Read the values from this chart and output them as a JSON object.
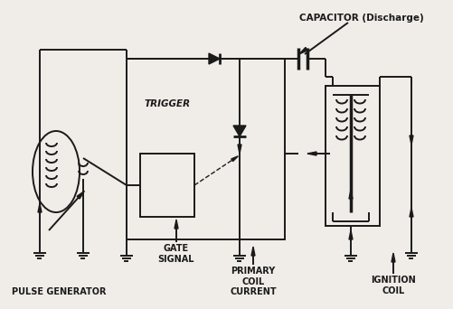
{
  "bg_color": "#f0ede8",
  "line_color": "#1a1a1a",
  "labels": {
    "capacitor": "CAPACITOR (Discharge)",
    "trigger": "TRIGGER",
    "gate_signal": "GATE\nSIGNAL",
    "pulse_generator": "PULSE GENERATOR",
    "primary_coil": "PRIMARY\nCOIL\nCURRENT",
    "ignition_coil": "IGNITION\nCOIL"
  },
  "figsize": [
    5.02,
    3.42
  ],
  "dpi": 100
}
